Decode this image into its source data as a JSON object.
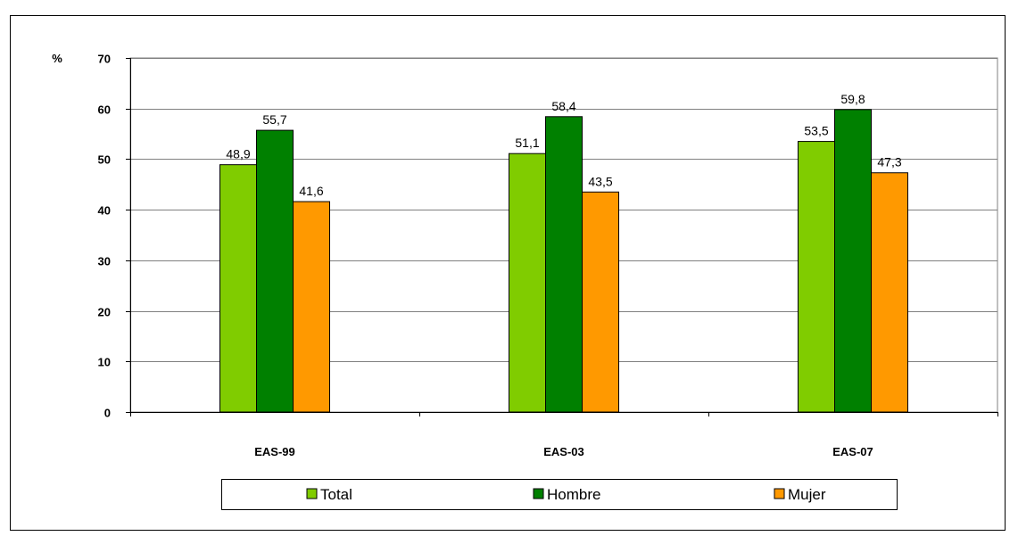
{
  "chart_data": {
    "type": "bar",
    "categories": [
      "EAS-99",
      "EAS-03",
      "EAS-07"
    ],
    "series": [
      {
        "name": "Total",
        "values": [
          48.9,
          51.1,
          53.5
        ],
        "color": "#80cc00"
      },
      {
        "name": "Hombre",
        "values": [
          55.7,
          58.4,
          59.8
        ],
        "color": "#008000"
      },
      {
        "name": "Mujer",
        "values": [
          41.6,
          43.5,
          47.3
        ],
        "color": "#ff9900"
      }
    ],
    "data_labels": [
      [
        "48,9",
        "51,1",
        "53,5"
      ],
      [
        "55,7",
        "58,4",
        "59,8"
      ],
      [
        "41,6",
        "43,5",
        "47,3"
      ]
    ],
    "y_unit": "%",
    "ylim": [
      0,
      70
    ],
    "yticks": [
      "0",
      "10",
      "20",
      "30",
      "40",
      "50",
      "60",
      "70"
    ],
    "plot_background": "#ffffff",
    "gridlines": true,
    "legend_position": "bottom"
  }
}
